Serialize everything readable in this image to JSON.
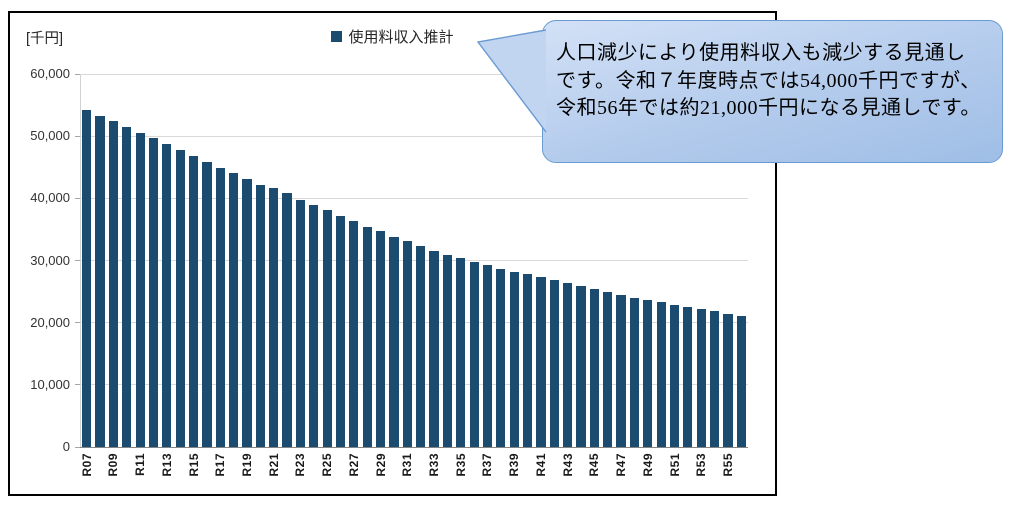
{
  "chart_data": {
    "type": "bar",
    "title": "使用料収入推計",
    "unit_label": "[千円]",
    "legend": {
      "label": "使用料収入推計",
      "position": "top"
    },
    "categories": [
      "R07",
      "R08",
      "R09",
      "R10",
      "R11",
      "R12",
      "R13",
      "R14",
      "R15",
      "R16",
      "R17",
      "R18",
      "R19",
      "R20",
      "R21",
      "R22",
      "R23",
      "R24",
      "R25",
      "R26",
      "R27",
      "R28",
      "R29",
      "R30",
      "R31",
      "R32",
      "R33",
      "R34",
      "R35",
      "R36",
      "R37",
      "R38",
      "R39",
      "R40",
      "R41",
      "R42",
      "R43",
      "R44",
      "R45",
      "R46",
      "R47",
      "R48",
      "R49",
      "R50",
      "R51",
      "R52",
      "R53",
      "R54",
      "R55",
      "R56"
    ],
    "values": [
      54200,
      53300,
      52500,
      51400,
      50500,
      49700,
      48700,
      47700,
      46800,
      45900,
      44900,
      44000,
      43100,
      42200,
      41600,
      40800,
      39800,
      38900,
      38100,
      37100,
      36300,
      35400,
      34700,
      33800,
      33100,
      32300,
      31500,
      30900,
      30400,
      29800,
      29200,
      28700,
      28200,
      27800,
      27300,
      26900,
      26400,
      25900,
      25400,
      24900,
      24400,
      24000,
      23600,
      23300,
      22900,
      22500,
      22200,
      21800,
      21400,
      21000
    ],
    "labeled_ticks": [
      "R07",
      "R09",
      "R11",
      "R13",
      "R15",
      "R17",
      "R19",
      "R21",
      "R23",
      "R25",
      "R27",
      "R29",
      "R31",
      "R33",
      "R35",
      "R37",
      "R39",
      "R41",
      "R43",
      "R45",
      "R47",
      "R49",
      "R51",
      "R53",
      "R55"
    ],
    "ylim": [
      0,
      60000
    ],
    "ytick_interval": 10000,
    "ytick_labels": [
      "0",
      "10,000",
      "20,000",
      "30,000",
      "40,000",
      "50,000",
      "60,000"
    ],
    "grid": "horizontal",
    "bar_color": "#1b4b6f"
  },
  "callout": {
    "lines": [
      "人口減少により使用料収入も減少する見通し",
      "です。令和７年度時点では54,000千円ですが、",
      "令和56年では約21,000千円になる見通しです。"
    ],
    "fill": "#c2d5f0",
    "border_color": "#6b9bd2"
  },
  "colors": {
    "bar": "#1b4b6f",
    "gridline": "#d9d9d9",
    "axis_line": "#848484",
    "chart_border": "#000000",
    "text": "#262626"
  }
}
